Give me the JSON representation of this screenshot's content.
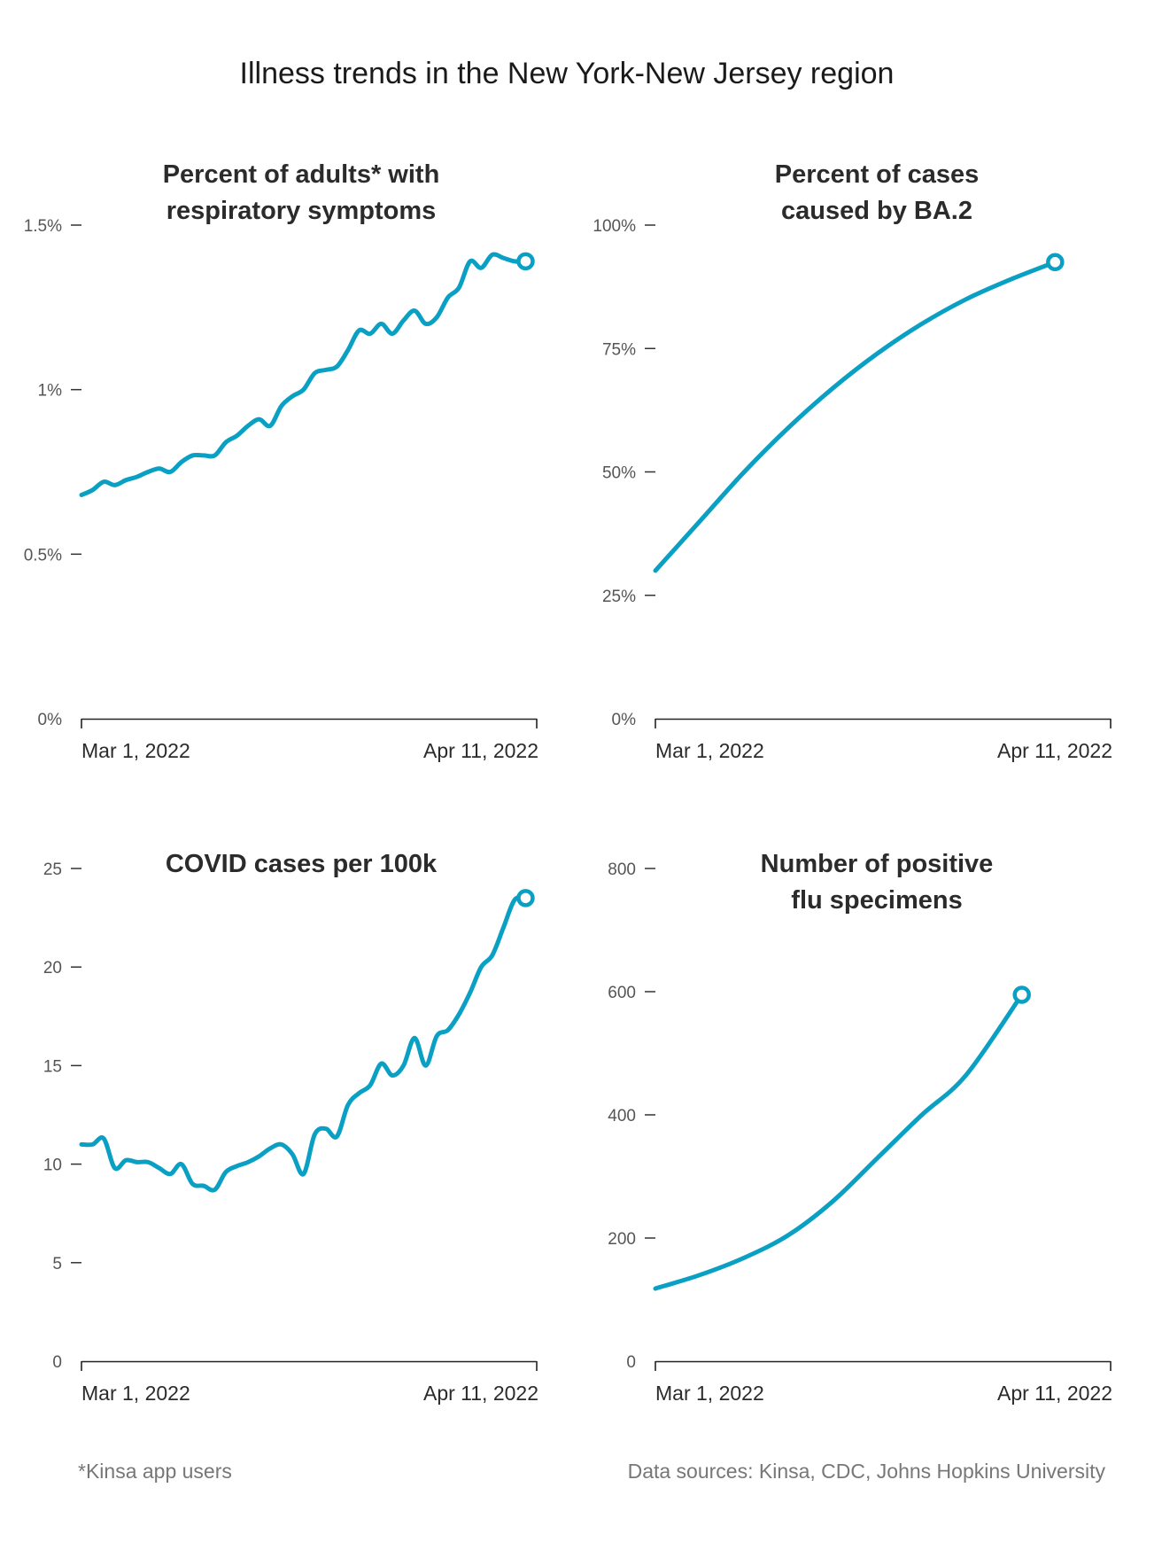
{
  "title": "Illness trends in the New York-New Jersey region",
  "footnote": "*Kinsa app users",
  "sources": "Data sources: Kinsa, CDC, Johns Hopkins University",
  "colors": {
    "accent": "#0aa0c4",
    "text": "#2b2b2b",
    "muted": "#777777"
  },
  "chart_data": [
    {
      "type": "line",
      "title_lines": [
        "Percent of adults* with",
        "respiratory symptoms"
      ],
      "x_start_label": "Mar 1, 2022",
      "x_end_label": "Apr 11, 2022",
      "y_ticks": [
        0,
        0.5,
        1,
        1.5
      ],
      "y_tick_labels": [
        "0%",
        "0.5%",
        "1%",
        "1.5%"
      ],
      "ylim": [
        0,
        1.5
      ],
      "xlim": [
        0,
        41
      ],
      "x": [
        0,
        1,
        2,
        3,
        4,
        5,
        6,
        7,
        8,
        9,
        10,
        11,
        12,
        13,
        14,
        15,
        16,
        17,
        18,
        19,
        20,
        21,
        22,
        23,
        24,
        25,
        26,
        27,
        28,
        29,
        30,
        31,
        32,
        33,
        34,
        35,
        36,
        37,
        38,
        39,
        40
      ],
      "values": [
        0.68,
        0.695,
        0.72,
        0.71,
        0.725,
        0.735,
        0.75,
        0.76,
        0.75,
        0.78,
        0.8,
        0.8,
        0.8,
        0.84,
        0.86,
        0.89,
        0.91,
        0.89,
        0.95,
        0.98,
        1.0,
        1.05,
        1.06,
        1.07,
        1.12,
        1.18,
        1.17,
        1.2,
        1.17,
        1.21,
        1.24,
        1.2,
        1.22,
        1.28,
        1.31,
        1.39,
        1.37,
        1.41,
        1.4,
        1.39,
        1.39
      ],
      "end_marker": true
    },
    {
      "type": "line",
      "title_lines": [
        "Percent of cases",
        "caused by BA.2"
      ],
      "x_start_label": "Mar 1, 2022",
      "x_end_label": "Apr 11, 2022",
      "y_ticks": [
        0,
        25,
        50,
        75,
        100
      ],
      "y_tick_labels": [
        "0%",
        "25%",
        "50%",
        "75%",
        "100%"
      ],
      "ylim": [
        0,
        100
      ],
      "xlim": [
        0,
        41
      ],
      "x": [
        0,
        4,
        8,
        12,
        16,
        20,
        24,
        28,
        32,
        36
      ],
      "values": [
        30,
        40,
        50,
        59,
        67,
        74,
        80,
        85,
        89,
        92.5
      ],
      "smooth": true,
      "end_marker": true
    },
    {
      "type": "line",
      "title_lines": [
        "COVID cases per 100k"
      ],
      "x_start_label": "Mar 1, 2022",
      "x_end_label": "Apr 11, 2022",
      "y_ticks": [
        0,
        5,
        10,
        15,
        20,
        25
      ],
      "y_tick_labels": [
        "0",
        "5",
        "10",
        "15",
        "20",
        "25"
      ],
      "ylim": [
        0,
        25
      ],
      "xlim": [
        0,
        41
      ],
      "x": [
        0,
        1,
        2,
        3,
        4,
        5,
        6,
        7,
        8,
        9,
        10,
        11,
        12,
        13,
        14,
        15,
        16,
        17,
        18,
        19,
        20,
        21,
        22,
        23,
        24,
        25,
        26,
        27,
        28,
        29,
        30,
        31,
        32,
        33,
        34,
        35,
        36,
        37,
        38,
        39,
        40
      ],
      "values": [
        11.0,
        11.0,
        11.3,
        9.8,
        10.2,
        10.1,
        10.1,
        9.8,
        9.5,
        10.0,
        9.0,
        8.9,
        8.7,
        9.6,
        9.9,
        10.1,
        10.4,
        10.8,
        11.0,
        10.5,
        9.5,
        11.5,
        11.8,
        11.4,
        13.0,
        13.6,
        14.0,
        15.1,
        14.5,
        15.0,
        16.4,
        15.0,
        16.5,
        16.8,
        17.6,
        18.7,
        20.0,
        20.6,
        22.0,
        23.4,
        23.5
      ],
      "end_marker": true
    },
    {
      "type": "line",
      "title_lines": [
        "Number of positive",
        "flu specimens"
      ],
      "x_start_label": "Mar 1, 2022",
      "x_end_label": "Apr 11, 2022",
      "y_ticks": [
        0,
        200,
        400,
        600,
        800
      ],
      "y_tick_labels": [
        "0",
        "200",
        "400",
        "600",
        "800"
      ],
      "ylim": [
        0,
        800
      ],
      "xlim": [
        0,
        41
      ],
      "x": [
        0,
        4,
        8,
        12,
        16,
        20,
        24,
        28,
        33
      ],
      "values": [
        118,
        140,
        168,
        205,
        260,
        330,
        400,
        465,
        595
      ],
      "smooth": true,
      "end_marker": true
    }
  ]
}
